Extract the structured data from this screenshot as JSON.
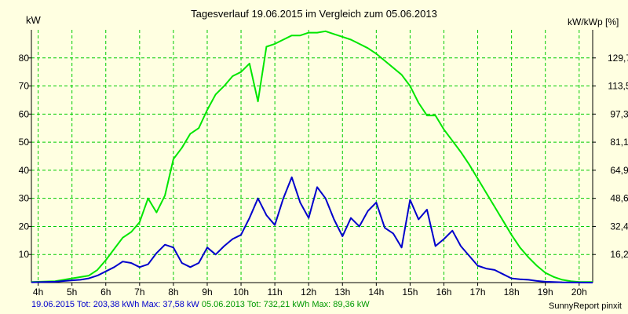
{
  "title": "Tagesverlauf 19.06.2015 im Vergleich zum 05.06.2013",
  "left_unit": "kW",
  "right_unit": "kW/kWp [%]",
  "footer": {
    "series1": "19.06.2015 Tot: 203,38 kWh Max: 37,58 kW",
    "series2": "05.06.2013 Tot: 732,21 kWh Max: 89,36 kW",
    "credit": "SunnyReport pinxit"
  },
  "colors": {
    "background": "#ffffe1",
    "grid": "#00cc00",
    "series_2015": "#0000cc",
    "series_2013": "#00e600"
  },
  "chart_data": {
    "type": "line",
    "x_ticks": [
      "4h",
      "5h",
      "6h",
      "7h",
      "8h",
      "9h",
      "10h",
      "11h",
      "12h",
      "13h",
      "14h",
      "15h",
      "16h",
      "17h",
      "18h",
      "19h",
      "20h"
    ],
    "xlim": [
      3.8,
      20.4
    ],
    "ylim": [
      0,
      90
    ],
    "y_ticks": [
      10,
      20,
      30,
      40,
      50,
      60,
      70,
      80
    ],
    "y2_ticks": [
      "16,2",
      "32,4",
      "48,6",
      "64,9",
      "81,1",
      "97,3",
      "113,5",
      "129,7"
    ],
    "grid": true,
    "series": [
      {
        "name": "19.06.2015",
        "color": "#0000cc",
        "x": [
          3.8,
          4.5,
          5.0,
          5.25,
          5.5,
          5.75,
          6.0,
          6.25,
          6.5,
          6.75,
          7.0,
          7.25,
          7.5,
          7.75,
          8.0,
          8.25,
          8.5,
          8.75,
          9.0,
          9.25,
          9.5,
          9.75,
          10.0,
          10.25,
          10.5,
          10.75,
          11.0,
          11.25,
          11.5,
          11.75,
          12.0,
          12.25,
          12.5,
          12.75,
          13.0,
          13.25,
          13.5,
          13.75,
          14.0,
          14.25,
          14.5,
          14.75,
          15.0,
          15.25,
          15.5,
          15.75,
          16.0,
          16.25,
          16.5,
          16.75,
          17.0,
          17.25,
          17.5,
          17.75,
          18.0,
          18.25,
          18.5,
          18.75,
          19.0,
          19.5,
          20.4
        ],
        "y": [
          0.1,
          0.3,
          0.8,
          1.0,
          1.5,
          2.5,
          4.0,
          5.5,
          7.5,
          7.0,
          5.5,
          6.5,
          10.5,
          13.5,
          12.5,
          7.0,
          5.5,
          7.0,
          12.5,
          10.0,
          13.0,
          15.5,
          17.0,
          23.0,
          30.0,
          24.0,
          20.5,
          30.0,
          37.5,
          28.5,
          23.0,
          34.0,
          30.0,
          22.5,
          16.5,
          23.0,
          20.0,
          25.5,
          28.5,
          19.5,
          17.5,
          12.5,
          29.5,
          22.5,
          26.0,
          13.0,
          15.5,
          18.5,
          13.0,
          9.5,
          6.0,
          5.0,
          4.5,
          3.0,
          1.5,
          1.2,
          1.0,
          0.6,
          0.3,
          0.1,
          0.0
        ]
      },
      {
        "name": "05.06.2013",
        "color": "#00e600",
        "x": [
          3.8,
          4.5,
          5.0,
          5.5,
          5.75,
          6.0,
          6.25,
          6.5,
          6.75,
          7.0,
          7.25,
          7.5,
          7.75,
          8.0,
          8.25,
          8.5,
          8.75,
          9.0,
          9.25,
          9.5,
          9.75,
          10.0,
          10.25,
          10.5,
          10.75,
          11.0,
          11.25,
          11.5,
          11.75,
          12.0,
          12.25,
          12.5,
          12.75,
          13.0,
          13.25,
          13.5,
          13.75,
          14.0,
          14.25,
          14.5,
          14.75,
          15.0,
          15.25,
          15.5,
          15.75,
          16.0,
          16.25,
          16.5,
          16.75,
          17.0,
          17.25,
          17.5,
          17.75,
          18.0,
          18.25,
          18.5,
          18.75,
          19.0,
          19.25,
          19.5,
          19.75,
          20.0,
          20.4
        ],
        "y": [
          0.2,
          0.5,
          1.5,
          2.5,
          4.5,
          8.0,
          12.0,
          16.0,
          18.0,
          21.5,
          30.0,
          25.0,
          31.0,
          44.0,
          48.0,
          53.0,
          55.0,
          61.5,
          67.0,
          70.0,
          73.5,
          75.0,
          78.0,
          64.5,
          84.0,
          85.0,
          86.5,
          88.0,
          88.0,
          89.0,
          89.0,
          89.5,
          88.5,
          87.5,
          86.5,
          85.0,
          83.5,
          81.5,
          79.0,
          76.5,
          74.0,
          70.0,
          64.0,
          59.5,
          59.5,
          54.5,
          50.5,
          46.5,
          42.0,
          37.0,
          32.0,
          27.0,
          22.0,
          17.0,
          12.5,
          9.0,
          6.0,
          3.5,
          2.0,
          1.0,
          0.5,
          0.2,
          0.2
        ]
      }
    ]
  }
}
